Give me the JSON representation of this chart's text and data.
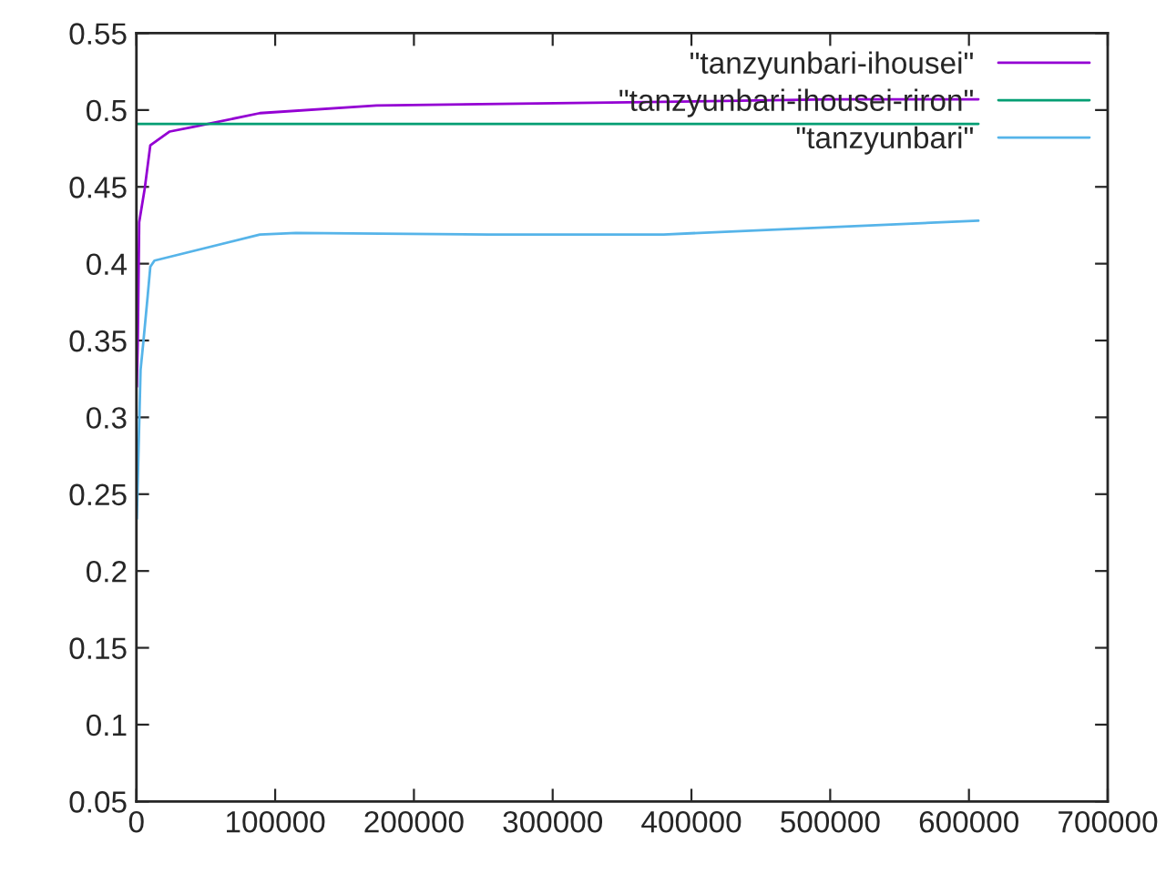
{
  "chart_data": {
    "type": "line",
    "series": [
      {
        "name": "\"tanzyunbari-ihousei\"",
        "color": "#9400d3",
        "x": [
          300,
          1000,
          2000,
          6000,
          10000,
          24000,
          41000,
          89000,
          173000,
          354600,
          500000,
          606800
        ],
        "values": [
          0.32,
          0.35,
          0.427,
          0.449,
          0.477,
          0.486,
          0.489,
          0.498,
          0.503,
          0.505,
          0.507,
          0.507
        ]
      },
      {
        "name": "\"tanzyunbari-ihousei-riron\"",
        "color": "#009e73",
        "x": [
          0,
          606800
        ],
        "values": [
          0.491,
          0.491
        ]
      },
      {
        "name": "\"tanzyunbari\"",
        "color": "#56b4e9",
        "x": [
          300,
          3000,
          5000,
          8000,
          10000,
          13000,
          89000,
          115000,
          254000,
          380000,
          606800
        ],
        "values": [
          0.234,
          0.331,
          0.349,
          0.378,
          0.398,
          0.402,
          0.419,
          0.42,
          0.419,
          0.419,
          0.428
        ]
      }
    ],
    "xlim": [
      0,
      700000
    ],
    "xticks": [
      0,
      100000,
      200000,
      300000,
      400000,
      500000,
      600000,
      700000
    ],
    "ylim": [
      0.05,
      0.55
    ],
    "yticks": [
      0.05,
      0.1,
      0.15,
      0.2,
      0.25,
      0.3,
      0.35,
      0.4,
      0.45,
      0.5,
      0.55
    ],
    "grid": false,
    "legend": "top right",
    "marker": "none",
    "line_style": "solid"
  }
}
